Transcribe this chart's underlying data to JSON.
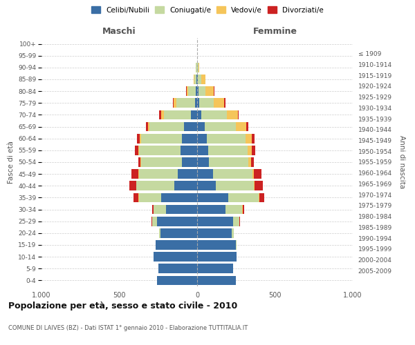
{
  "age_groups": [
    "0-4",
    "5-9",
    "10-14",
    "15-19",
    "20-24",
    "25-29",
    "30-34",
    "35-39",
    "40-44",
    "45-49",
    "50-54",
    "55-59",
    "60-64",
    "65-69",
    "70-74",
    "75-79",
    "80-84",
    "85-89",
    "90-94",
    "95-99",
    "100+"
  ],
  "birth_years": [
    "2005-2009",
    "2000-2004",
    "1995-1999",
    "1990-1994",
    "1985-1989",
    "1980-1984",
    "1975-1979",
    "1970-1974",
    "1965-1969",
    "1960-1964",
    "1955-1959",
    "1950-1954",
    "1945-1949",
    "1940-1944",
    "1935-1939",
    "1930-1934",
    "1925-1929",
    "1920-1924",
    "1915-1919",
    "1910-1914",
    "≤ 1909"
  ],
  "maschi": {
    "celibi": [
      260,
      250,
      280,
      265,
      235,
      260,
      200,
      230,
      145,
      125,
      100,
      105,
      100,
      85,
      40,
      15,
      8,
      3,
      2,
      0,
      0
    ],
    "coniugati": [
      0,
      0,
      0,
      2,
      10,
      30,
      80,
      145,
      245,
      250,
      260,
      270,
      260,
      220,
      175,
      120,
      50,
      15,
      5,
      1,
      0
    ],
    "vedovi": [
      0,
      0,
      0,
      0,
      0,
      1,
      1,
      2,
      2,
      3,
      3,
      5,
      8,
      10,
      18,
      15,
      10,
      5,
      2,
      0,
      0
    ],
    "divorziati": [
      0,
      0,
      0,
      0,
      0,
      2,
      10,
      30,
      45,
      45,
      15,
      20,
      20,
      15,
      10,
      5,
      2,
      0,
      0,
      0,
      0
    ]
  },
  "femmine": {
    "nubili": [
      250,
      230,
      255,
      250,
      220,
      230,
      180,
      200,
      120,
      100,
      75,
      70,
      60,
      50,
      25,
      15,
      8,
      5,
      2,
      0,
      0
    ],
    "coniugate": [
      0,
      0,
      0,
      3,
      15,
      40,
      110,
      195,
      245,
      255,
      255,
      255,
      250,
      200,
      165,
      90,
      45,
      20,
      5,
      1,
      0
    ],
    "vedove": [
      0,
      0,
      0,
      0,
      0,
      1,
      2,
      3,
      5,
      8,
      15,
      25,
      40,
      65,
      70,
      70,
      55,
      30,
      5,
      0,
      0
    ],
    "divorziate": [
      0,
      0,
      0,
      0,
      0,
      3,
      12,
      35,
      50,
      50,
      18,
      22,
      18,
      12,
      8,
      5,
      2,
      0,
      0,
      0,
      0
    ]
  },
  "colors": {
    "celibi_nubili": "#3a6ea5",
    "coniugati": "#c5d9a0",
    "vedovi": "#f5c55a",
    "divorziati": "#cc2222"
  },
  "xlim": 1000,
  "title": "Popolazione per età, sesso e stato civile - 2010",
  "subtitle": "COMUNE DI LAIVES (BZ) - Dati ISTAT 1° gennaio 2010 - Elaborazione TUTTITALIA.IT",
  "ylabel_left": "Fasce di età",
  "ylabel_right": "Anni di nascita",
  "xlabel_left": "Maschi",
  "xlabel_right": "Femmine",
  "legend_labels": [
    "Celibi/Nubili",
    "Coniugati/e",
    "Vedovi/e",
    "Divorziati/e"
  ],
  "bg_color": "#ffffff",
  "grid_color": "#cccccc"
}
